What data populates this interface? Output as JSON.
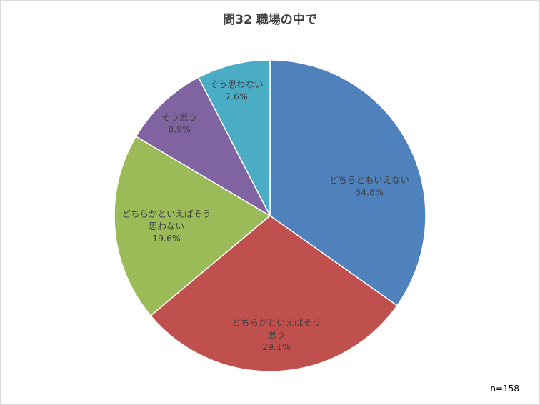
{
  "chart_data": {
    "type": "pie",
    "title": "問32 職場の中で",
    "slices": [
      {
        "label_lines": [
          "どちらともいえない"
        ],
        "percent_label": "34.8%",
        "value": 34.8,
        "color": "#4F81BD"
      },
      {
        "label_lines": [
          "どちらかといえばそう",
          "思う"
        ],
        "percent_label": "29.1%",
        "value": 29.1,
        "color": "#C0504D"
      },
      {
        "label_lines": [
          "どちらかといえばそう",
          "思わない"
        ],
        "percent_label": "19.6%",
        "value": 19.6,
        "color": "#9BBB59"
      },
      {
        "label_lines": [
          "そう思う"
        ],
        "percent_label": "8.9%",
        "value": 8.9,
        "color": "#8064A2"
      },
      {
        "label_lines": [
          "そう思わない"
        ],
        "percent_label": "7.6%",
        "value": 7.6,
        "color": "#4BACC6"
      }
    ],
    "start": "12 o'clock",
    "direction": "clockwise",
    "legend": "none",
    "note": "n=158"
  }
}
